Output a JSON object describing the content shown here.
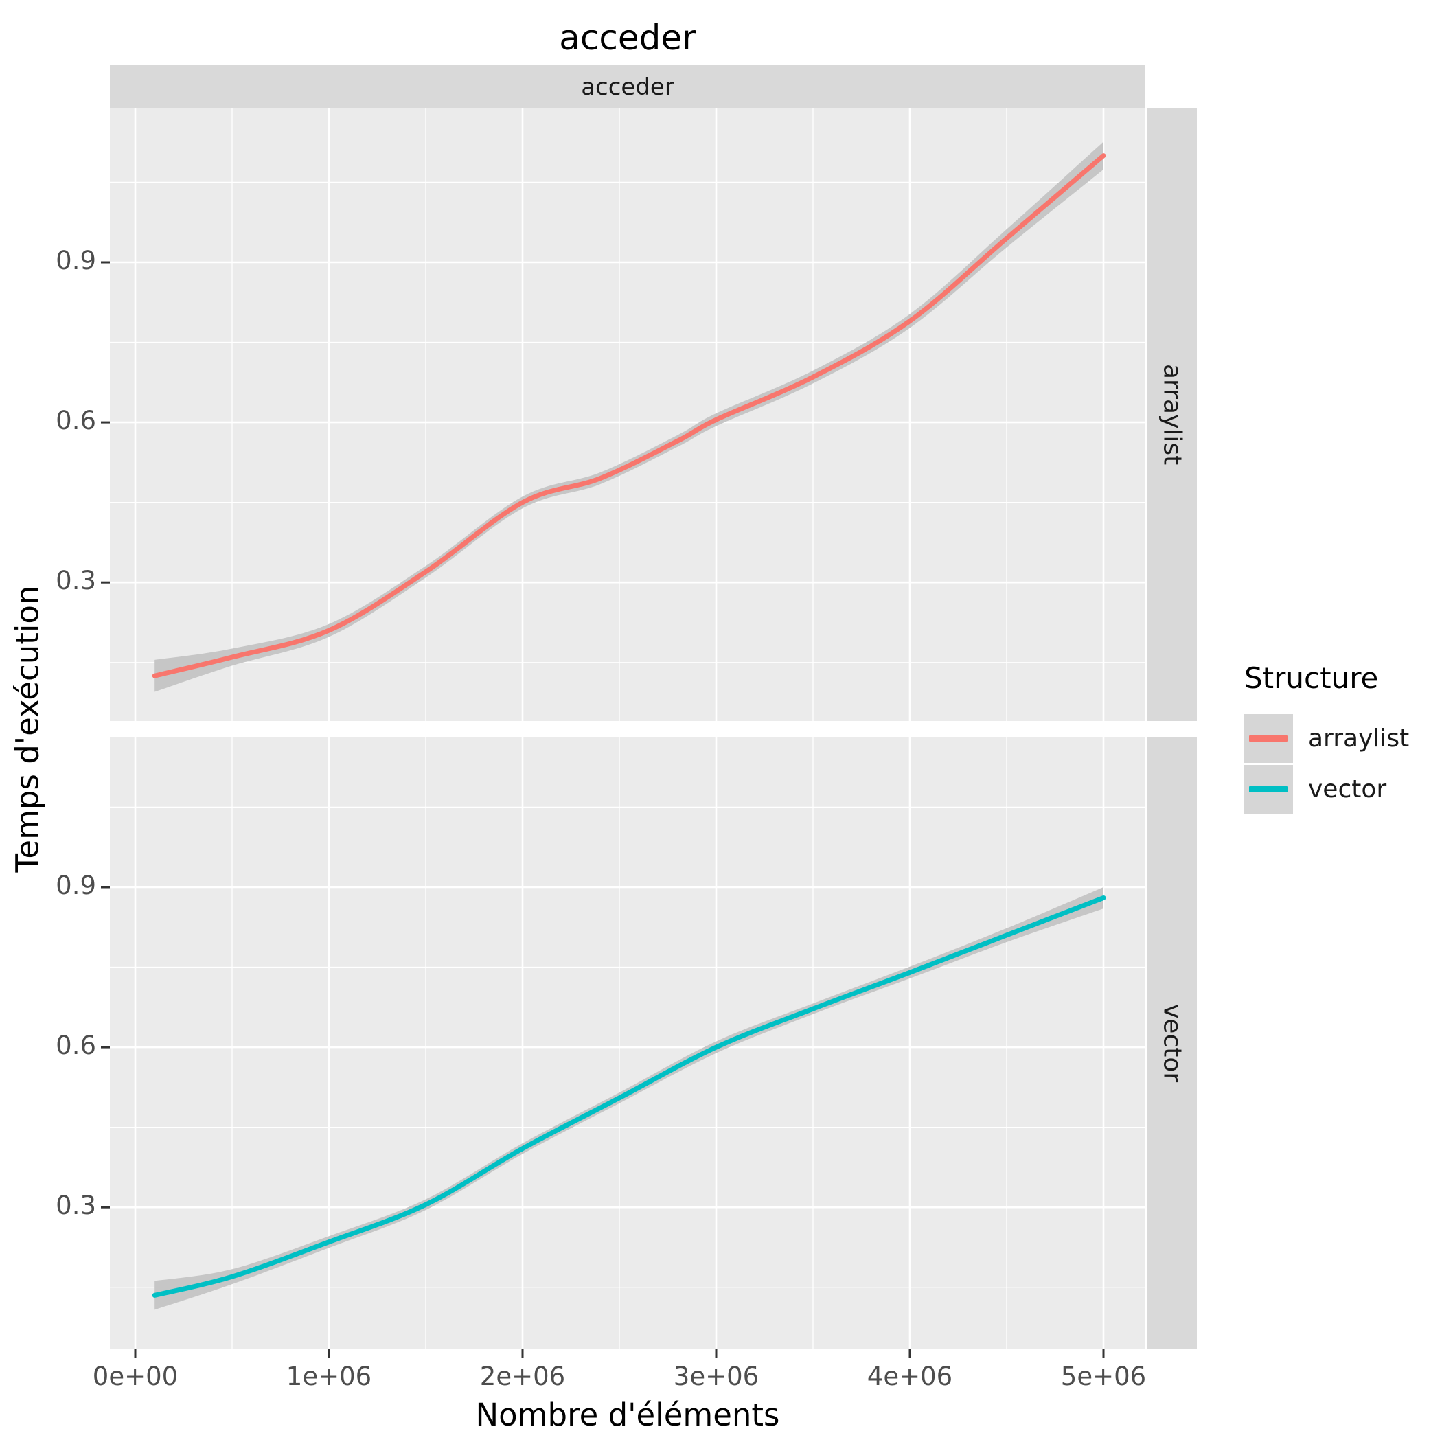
{
  "title": "acceder",
  "facet": {
    "top_strip_label": "acceder",
    "right_strip_labels": [
      "arraylist",
      "vector"
    ]
  },
  "axes": {
    "x": {
      "title": "Nombre d'éléments",
      "ticks": [
        {
          "value": 0,
          "label": "0e+00"
        },
        {
          "value": 1000000,
          "label": "1e+06"
        },
        {
          "value": 2000000,
          "label": "2e+06"
        },
        {
          "value": 3000000,
          "label": "3e+06"
        },
        {
          "value": 4000000,
          "label": "4e+06"
        },
        {
          "value": 5000000,
          "label": "5e+06"
        }
      ]
    },
    "y": {
      "title": "Temps d'exécution",
      "ticks": [
        {
          "value": 0.3,
          "label": "0.3"
        },
        {
          "value": 0.6,
          "label": "0.6"
        },
        {
          "value": 0.9,
          "label": "0.9"
        }
      ]
    }
  },
  "legend": {
    "title": "Structure",
    "items": [
      {
        "label": "arraylist",
        "color": "#F8766D"
      },
      {
        "label": "vector",
        "color": "#00BFC4"
      }
    ]
  },
  "colors": {
    "panel_background": "#EBEBEB",
    "strip_background": "#D9D9D9",
    "grid": "#FFFFFF",
    "ribbon": "#C6C6C6",
    "tick_mark": "#333333",
    "tick_text": "#4D4D4D"
  },
  "chart_data": [
    {
      "type": "line",
      "facet": "arraylist",
      "series_name": "arraylist",
      "color": "#F8766D",
      "smoothed": true,
      "x": [
        100000,
        500000,
        1000000,
        1500000,
        2000000,
        2400000,
        2800000,
        3000000,
        3500000,
        4000000,
        4500000,
        5000000
      ],
      "y": [
        0.125,
        0.16,
        0.21,
        0.32,
        0.45,
        0.495,
        0.565,
        0.605,
        0.685,
        0.79,
        0.945,
        1.1
      ],
      "ribbon_halfwidth": [
        0.03,
        0.016,
        0.012,
        0.011,
        0.011,
        0.011,
        0.011,
        0.012,
        0.012,
        0.013,
        0.017,
        0.026
      ],
      "xlabel": "Nombre d'éléments",
      "ylabel": "Temps d'exécution",
      "xlim": [
        -140000,
        5220000
      ],
      "ylim": [
        0.04,
        1.19
      ],
      "x_major_ticks": [
        0,
        1000000,
        2000000,
        3000000,
        4000000,
        5000000
      ],
      "y_major_ticks": [
        0.3,
        0.6,
        0.9
      ],
      "y_minor_ticks": [
        0.15,
        0.45,
        0.75,
        1.05
      ],
      "grid": true,
      "legend_position": "right"
    },
    {
      "type": "line",
      "facet": "vector",
      "series_name": "vector",
      "color": "#00BFC4",
      "smoothed": true,
      "x": [
        100000,
        500000,
        1000000,
        1500000,
        2000000,
        2500000,
        3000000,
        3500000,
        4000000,
        4500000,
        5000000
      ],
      "y": [
        0.135,
        0.17,
        0.235,
        0.305,
        0.41,
        0.505,
        0.6,
        0.672,
        0.74,
        0.81,
        0.88
      ],
      "ribbon_halfwidth": [
        0.027,
        0.014,
        0.011,
        0.01,
        0.01,
        0.01,
        0.011,
        0.01,
        0.011,
        0.013,
        0.02
      ],
      "xlabel": "Nombre d'éléments",
      "ylabel": "Temps d'exécution",
      "xlim": [
        -140000,
        5220000
      ],
      "ylim": [
        0.04,
        1.19
      ],
      "x_major_ticks": [
        0,
        1000000,
        2000000,
        3000000,
        4000000,
        5000000
      ],
      "y_major_ticks": [
        0.3,
        0.6,
        0.9
      ],
      "y_minor_ticks": [
        0.15,
        0.45,
        0.75,
        1.05
      ],
      "grid": true,
      "legend_position": "right"
    }
  ]
}
